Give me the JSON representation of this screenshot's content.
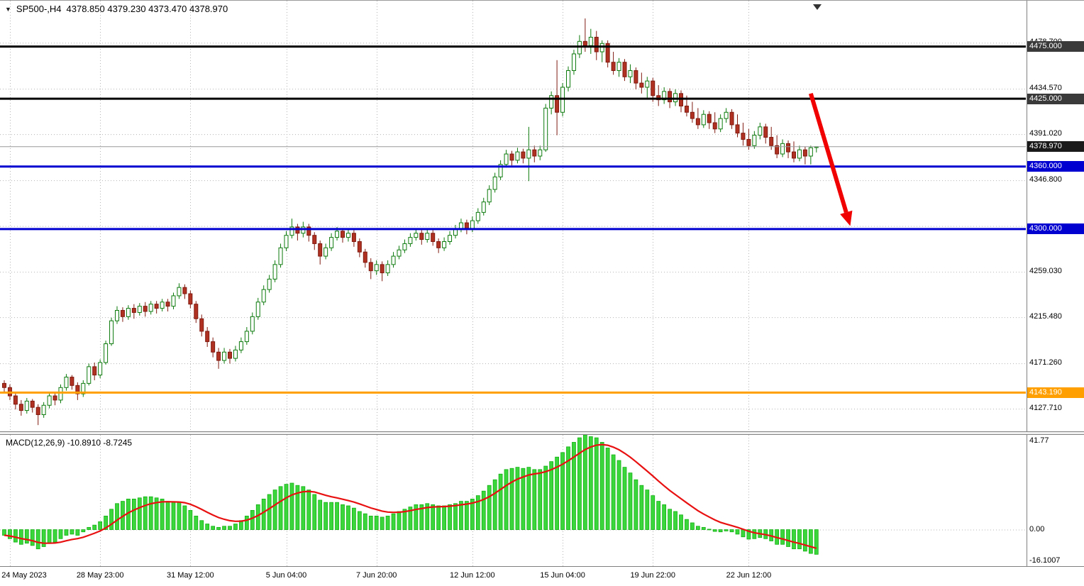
{
  "header": {
    "symbol": "SP500-,H4",
    "ohlc": "4378.850 4379.230 4373.470 4378.970",
    "dropdown_icon": "▼"
  },
  "colors": {
    "background": "#ffffff",
    "grid": "#b4b4b4",
    "bull_body": "#ffffff",
    "bull_border": "#0c7a0c",
    "bear_body": "#b03022",
    "bear_border": "#801b10",
    "macd_histogram": "#3bd63b",
    "macd_histogram_border": "#0faf0f",
    "macd_signal": "#e81010",
    "level_blue": "#0000d0",
    "level_orange": "#ffa000",
    "black_badge": "#3a3a3a",
    "current_price_badge": "#1a1a1a",
    "arrow_red": "#f00000",
    "axis_text": "#000000"
  },
  "chart_data": [
    {
      "type": "candlestick",
      "title": "SP500-,H4",
      "timeframe": "H4",
      "y_range": [
        4106,
        4519
      ],
      "axis_ticks": [
        {
          "price": 4478.7,
          "label": "4478.700"
        },
        {
          "price": 4434.57,
          "label": "4434.570"
        },
        {
          "price": 4391.02,
          "label": "4391.020"
        },
        {
          "price": 4346.8,
          "label": "4346.800"
        },
        {
          "price": 4302.92,
          "label": ""
        },
        {
          "price": 4259.03,
          "label": "4259.030"
        },
        {
          "price": 4215.48,
          "label": "4215.480"
        },
        {
          "price": 4171.26,
          "label": "4171.260"
        },
        {
          "price": 4127.71,
          "label": "4127.710"
        }
      ],
      "time_ticks": [
        {
          "bar": 1,
          "label": "24 May 2023"
        },
        {
          "bar": 17,
          "label": "28 May 23:00"
        },
        {
          "bar": 33,
          "label": "31 May 12:00"
        },
        {
          "bar": 50,
          "label": "5 Jun 04:00"
        },
        {
          "bar": 66,
          "label": "7 Jun 20:00"
        },
        {
          "bar": 83,
          "label": "12 Jun 12:00"
        },
        {
          "bar": 99,
          "label": "15 Jun 04:00"
        },
        {
          "bar": 115,
          "label": "19 Jun 22:00"
        },
        {
          "bar": 132,
          "label": "22 Jun 12:00"
        }
      ],
      "hlines": [
        {
          "price": 4475.0,
          "label": "4475.000",
          "color": "#000000",
          "badge": "#3a3a3a"
        },
        {
          "price": 4425.0,
          "label": "4425.000",
          "color": "#000000",
          "badge": "#3a3a3a"
        },
        {
          "price": 4360.0,
          "label": "4360.000",
          "color": "#0000d0",
          "badge": "#0000d0"
        },
        {
          "price": 4300.0,
          "label": "4300.000",
          "color": "#0000d0",
          "badge": "#0000d0"
        },
        {
          "price": 4143.19,
          "label": "4143.190",
          "color": "#ffa000",
          "badge": "#ffa000"
        }
      ],
      "current_price": {
        "price": 4378.97,
        "label": "4378.970"
      },
      "arrow": {
        "from_bar": 143,
        "from_price": 4430,
        "to_bar": 150,
        "to_price": 4303
      },
      "candles": [
        [
          4152,
          4155,
          4144,
          4148
        ],
        [
          4148,
          4151,
          4136,
          4140
        ],
        [
          4140,
          4143,
          4127,
          4132
        ],
        [
          4132,
          4136,
          4121,
          4126
        ],
        [
          4126,
          4138,
          4123,
          4135
        ],
        [
          4135,
          4137,
          4124,
          4129
        ],
        [
          4129,
          4132,
          4112,
          4122
        ],
        [
          4122,
          4134,
          4119,
          4131
        ],
        [
          4131,
          4143,
          4128,
          4140
        ],
        [
          4140,
          4144,
          4131,
          4136
        ],
        [
          4136,
          4151,
          4133,
          4148
        ],
        [
          4148,
          4161,
          4145,
          4158
        ],
        [
          4158,
          4160,
          4146,
          4150
        ],
        [
          4150,
          4153,
          4136,
          4142
        ],
        [
          4142,
          4155,
          4139,
          4152
        ],
        [
          4152,
          4171,
          4150,
          4168
        ],
        [
          4168,
          4172,
          4155,
          4160
        ],
        [
          4160,
          4175,
          4157,
          4172
        ],
        [
          4172,
          4193,
          4170,
          4190
        ],
        [
          4190,
          4215,
          4188,
          4212
        ],
        [
          4212,
          4226,
          4209,
          4222
        ],
        [
          4222,
          4225,
          4211,
          4216
        ],
        [
          4216,
          4227,
          4213,
          4224
        ],
        [
          4224,
          4228,
          4214,
          4220
        ],
        [
          4220,
          4229,
          4217,
          4226
        ],
        [
          4226,
          4230,
          4216,
          4221
        ],
        [
          4221,
          4231,
          4218,
          4228
        ],
        [
          4228,
          4231,
          4219,
          4224
        ],
        [
          4224,
          4233,
          4221,
          4230
        ],
        [
          4230,
          4233,
          4221,
          4226
        ],
        [
          4226,
          4239,
          4223,
          4236
        ],
        [
          4236,
          4248,
          4233,
          4244
        ],
        [
          4244,
          4247,
          4233,
          4238
        ],
        [
          4238,
          4241,
          4224,
          4228
        ],
        [
          4228,
          4231,
          4210,
          4214
        ],
        [
          4214,
          4218,
          4197,
          4202
        ],
        [
          4202,
          4206,
          4187,
          4192
        ],
        [
          4192,
          4196,
          4177,
          4182
        ],
        [
          4182,
          4186,
          4166,
          4174
        ],
        [
          4174,
          4186,
          4171,
          4182
        ],
        [
          4182,
          4185,
          4171,
          4176
        ],
        [
          4176,
          4188,
          4173,
          4184
        ],
        [
          4184,
          4196,
          4181,
          4192
        ],
        [
          4192,
          4206,
          4189,
          4202
        ],
        [
          4202,
          4220,
          4199,
          4216
        ],
        [
          4216,
          4234,
          4213,
          4230
        ],
        [
          4230,
          4246,
          4227,
          4242
        ],
        [
          4242,
          4256,
          4239,
          4252
        ],
        [
          4252,
          4270,
          4249,
          4266
        ],
        [
          4266,
          4286,
          4263,
          4282
        ],
        [
          4282,
          4298,
          4279,
          4294
        ],
        [
          4294,
          4310,
          4291,
          4302
        ],
        [
          4302,
          4305,
          4289,
          4296
        ],
        [
          4296,
          4307,
          4292,
          4302
        ],
        [
          4302,
          4305,
          4288,
          4294
        ],
        [
          4294,
          4297,
          4280,
          4286
        ],
        [
          4286,
          4289,
          4266,
          4274
        ],
        [
          4274,
          4286,
          4271,
          4282
        ],
        [
          4282,
          4296,
          4279,
          4292
        ],
        [
          4292,
          4302,
          4289,
          4298
        ],
        [
          4298,
          4301,
          4287,
          4292
        ],
        [
          4292,
          4300,
          4288,
          4296
        ],
        [
          4296,
          4299,
          4283,
          4288
        ],
        [
          4288,
          4291,
          4273,
          4278
        ],
        [
          4278,
          4281,
          4263,
          4268
        ],
        [
          4268,
          4272,
          4252,
          4260
        ],
        [
          4260,
          4270,
          4256,
          4266
        ],
        [
          4266,
          4269,
          4250,
          4258
        ],
        [
          4258,
          4270,
          4255,
          4266
        ],
        [
          4266,
          4278,
          4263,
          4274
        ],
        [
          4274,
          4284,
          4271,
          4280
        ],
        [
          4280,
          4290,
          4277,
          4286
        ],
        [
          4286,
          4296,
          4283,
          4292
        ],
        [
          4292,
          4300,
          4289,
          4296
        ],
        [
          4296,
          4299,
          4285,
          4290
        ],
        [
          4290,
          4300,
          4287,
          4296
        ],
        [
          4296,
          4299,
          4284,
          4288
        ],
        [
          4288,
          4291,
          4277,
          4282
        ],
        [
          4282,
          4292,
          4279,
          4288
        ],
        [
          4288,
          4298,
          4285,
          4294
        ],
        [
          4294,
          4304,
          4291,
          4300
        ],
        [
          4300,
          4310,
          4297,
          4306
        ],
        [
          4306,
          4309,
          4295,
          4300
        ],
        [
          4300,
          4312,
          4297,
          4308
        ],
        [
          4308,
          4320,
          4305,
          4316
        ],
        [
          4316,
          4330,
          4313,
          4326
        ],
        [
          4326,
          4342,
          4323,
          4338
        ],
        [
          4338,
          4354,
          4335,
          4350
        ],
        [
          4350,
          4366,
          4347,
          4362
        ],
        [
          4362,
          4376,
          4359,
          4372
        ],
        [
          4372,
          4375,
          4361,
          4366
        ],
        [
          4366,
          4378,
          4363,
          4374
        ],
        [
          4374,
          4377,
          4363,
          4368
        ],
        [
          4368,
          4398,
          4346,
          4376
        ],
        [
          4376,
          4380,
          4364,
          4370
        ],
        [
          4370,
          4380,
          4366,
          4376
        ],
        [
          4376,
          4420,
          4374,
          4416
        ],
        [
          4416,
          4432,
          4410,
          4428
        ],
        [
          4428,
          4462,
          4390,
          4412
        ],
        [
          4412,
          4440,
          4408,
          4436
        ],
        [
          4436,
          4456,
          4432,
          4452
        ],
        [
          4452,
          4472,
          4448,
          4468
        ],
        [
          4468,
          4486,
          4464,
          4480
        ],
        [
          4480,
          4502,
          4470,
          4476
        ],
        [
          4476,
          4492,
          4468,
          4484
        ],
        [
          4484,
          4490,
          4462,
          4470
        ],
        [
          4470,
          4481,
          4460,
          4478
        ],
        [
          4478,
          4481,
          4455,
          4460
        ],
        [
          4460,
          4470,
          4448,
          4452
        ],
        [
          4452,
          4464,
          4446,
          4460
        ],
        [
          4460,
          4463,
          4442,
          4446
        ],
        [
          4446,
          4458,
          4440,
          4452
        ],
        [
          4452,
          4455,
          4434,
          4440
        ],
        [
          4440,
          4450,
          4430,
          4436
        ],
        [
          4436,
          4446,
          4426,
          4442
        ],
        [
          4442,
          4445,
          4422,
          4428
        ],
        [
          4428,
          4438,
          4418,
          4424
        ],
        [
          4424,
          4436,
          4420,
          4432
        ],
        [
          4432,
          4435,
          4416,
          4422
        ],
        [
          4422,
          4434,
          4418,
          4430
        ],
        [
          4430,
          4433,
          4412,
          4418
        ],
        [
          4418,
          4428,
          4408,
          4412
        ],
        [
          4412,
          4422,
          4402,
          4406
        ],
        [
          4406,
          4416,
          4396,
          4400
        ],
        [
          4400,
          4414,
          4397,
          4410
        ],
        [
          4410,
          4413,
          4396,
          4402
        ],
        [
          4402,
          4412,
          4392,
          4396
        ],
        [
          4396,
          4410,
          4393,
          4406
        ],
        [
          4406,
          4416,
          4402,
          4412
        ],
        [
          4412,
          4415,
          4396,
          4400
        ],
        [
          4400,
          4410,
          4388,
          4392
        ],
        [
          4392,
          4402,
          4380,
          4386
        ],
        [
          4386,
          4396,
          4376,
          4380
        ],
        [
          4380,
          4394,
          4377,
          4390
        ],
        [
          4390,
          4402,
          4386,
          4398
        ],
        [
          4398,
          4401,
          4382,
          4388
        ],
        [
          4388,
          4398,
          4376,
          4380
        ],
        [
          4380,
          4390,
          4368,
          4372
        ],
        [
          4372,
          4386,
          4369,
          4382
        ],
        [
          4382,
          4385,
          4368,
          4374
        ],
        [
          4374,
          4384,
          4364,
          4368
        ],
        [
          4368,
          4380,
          4365,
          4376
        ],
        [
          4376,
          4379,
          4362,
          4370
        ],
        [
          4370,
          4380,
          4362,
          4378
        ],
        [
          4378.85,
          4379.23,
          4373.47,
          4378.97
        ]
      ]
    },
    {
      "type": "macd",
      "label": "MACD(12,26,9) -10.8910 -8.7245",
      "params": "12,26,9",
      "macd_value": -10.891,
      "signal_value": -8.7245,
      "y_range": [
        -16.1007,
        41.77
      ],
      "axis_ticks": [
        {
          "value": 41.77,
          "label": "41.77"
        },
        {
          "value": 0,
          "label": "0.00"
        },
        {
          "value": -16.1007,
          "label": "-16.1007"
        }
      ],
      "signal_period": 9,
      "histogram": [
        -2.5,
        -4,
        -5.5,
        -6.5,
        -6,
        -7,
        -8.5,
        -7.5,
        -6,
        -5.5,
        -4,
        -2.5,
        -2,
        -2.5,
        -1,
        1,
        2,
        3.5,
        6,
        9,
        11.5,
        12.5,
        13.5,
        13.5,
        14,
        14.5,
        14.5,
        14,
        13.5,
        12.5,
        12,
        12,
        10.5,
        8.5,
        6,
        4,
        2.5,
        1.5,
        1,
        1.5,
        1.5,
        2.5,
        4,
        6,
        8.5,
        11,
        13.5,
        15.5,
        17.5,
        19,
        20,
        20.5,
        19.5,
        19,
        17.5,
        15.5,
        13,
        12,
        12,
        12,
        11,
        10.5,
        9.5,
        8,
        7,
        6,
        6,
        5.5,
        6,
        7,
        8,
        9,
        10,
        11,
        11,
        11.5,
        11,
        10.5,
        10.5,
        11,
        11.5,
        12.5,
        12.5,
        13.5,
        15,
        17,
        19.5,
        22,
        24.5,
        26.5,
        27,
        27.5,
        27,
        27.5,
        26.5,
        26.5,
        28,
        30,
        32,
        34,
        36.5,
        38.5,
        40.5,
        41.77,
        41,
        40.5,
        38.5,
        36,
        33,
        30.5,
        27.5,
        25,
        22,
        19.5,
        17.5,
        15,
        12.5,
        11,
        9,
        8,
        6.5,
        4.5,
        3,
        1.5,
        1,
        0.2,
        -0.8,
        -1,
        -0.6,
        -1,
        -2,
        -3.2,
        -4.2,
        -4,
        -3.5,
        -4,
        -5,
        -6.5,
        -6.5,
        -7.5,
        -8.5,
        -8.5,
        -9.5,
        -10.5,
        -10.891
      ]
    }
  ]
}
